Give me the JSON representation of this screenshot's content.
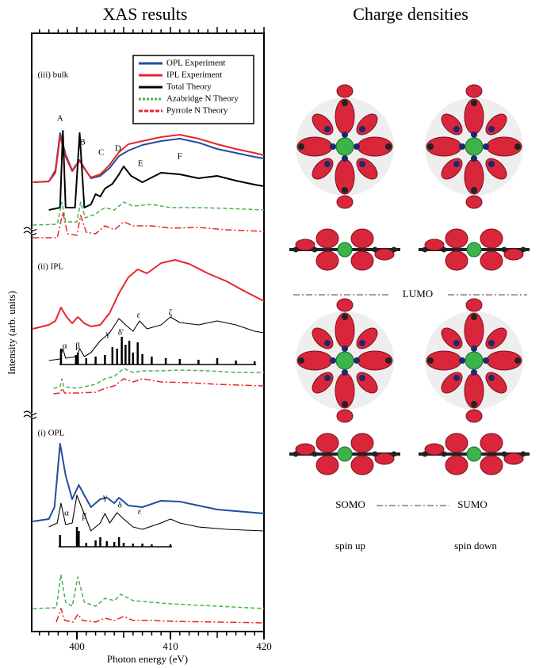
{
  "chart_data": {
    "type": "line",
    "title": "XAS results",
    "xlabel": "Photon energy (eV)",
    "ylabel": "Intensity (arb. units)",
    "xlim": [
      395,
      420
    ],
    "xticks": [
      400,
      410,
      420
    ],
    "minor_tick_step": 1,
    "ylim": [
      0,
      755
    ],
    "legend": "upper right",
    "series": [
      {
        "name": "OPL Experiment",
        "color": "#1f4e9c",
        "dash": "solid",
        "x": [
          395.3,
          397,
          397.7,
          398.2,
          398.8,
          399.5,
          400.3,
          400.8,
          401.5,
          402.5,
          403.5,
          404.5,
          405.5,
          407,
          409,
          411,
          413,
          415,
          417,
          419,
          420
        ],
        "values": [
          567,
          568,
          582,
          629,
          602,
          582,
          595,
          585,
          572,
          575,
          585,
          600,
          607,
          614,
          619,
          622,
          617,
          609,
          604,
          599,
          597
        ]
      },
      {
        "name": "IPL Experiment",
        "color": "#e8262a",
        "dash": "solid",
        "x": [
          395.3,
          397,
          397.7,
          398.2,
          398.8,
          399.5,
          400.3,
          400.8,
          401.5,
          402.5,
          403.5,
          404.5,
          405.5,
          407,
          409,
          411,
          413,
          415,
          417,
          419,
          420
        ],
        "values": [
          567,
          568,
          579,
          625,
          599,
          581,
          594,
          584,
          573,
          577,
          589,
          605,
          615,
          619,
          624,
          627,
          622,
          615,
          609,
          604,
          601
        ]
      },
      {
        "name": "Total Theory",
        "color": "#000000",
        "dash": "solid",
        "x": [
          397,
          398.2,
          398.5,
          398.8,
          399.8,
          400.3,
          400.8,
          401.5,
          402,
          402.5,
          403,
          403.8,
          404.5,
          405,
          405.8,
          407,
          409,
          411,
          413,
          415,
          417,
          419,
          420
        ],
        "values": [
          532,
          535,
          632,
          535,
          535,
          629,
          535,
          539,
          552,
          549,
          559,
          565,
          577,
          587,
          575,
          567,
          579,
          577,
          572,
          575,
          569,
          564,
          562
        ]
      },
      {
        "name": "Azabridge N Theory",
        "color": "#4caf50",
        "dash": "dashed",
        "x": [
          395.3,
          397.9,
          398.4,
          398.8,
          400,
          400.4,
          400.9,
          402,
          403,
          404,
          405,
          406,
          408,
          410,
          413,
          416,
          420
        ],
        "values": [
          513,
          514,
          542,
          517,
          517,
          542,
          522,
          527,
          535,
          532,
          542,
          537,
          539,
          535,
          535,
          534,
          532
        ]
      },
      {
        "name": "Pyrrole N Theory",
        "color": "#e8262a",
        "dash": "dashdot",
        "x": [
          395.3,
          397.9,
          398.5,
          399,
          400,
          400.4,
          401,
          402,
          403,
          404,
          405,
          406,
          408,
          410,
          413,
          416,
          420
        ],
        "values": [
          497,
          497,
          529,
          502,
          500,
          525,
          504,
          502,
          512,
          507,
          517,
          512,
          512,
          509,
          510,
          507,
          505
        ]
      },
      {
        "name": "IPL Experiment",
        "color": "#e8262a",
        "dash": "solid",
        "x": [
          395.3,
          397,
          397.7,
          398.3,
          398.9,
          399.5,
          400.1,
          400.8,
          401.5,
          402.5,
          403.5,
          404.5,
          405.5,
          406.5,
          407.5,
          409,
          410.5,
          412,
          414,
          416,
          418,
          420
        ],
        "values": [
          382,
          387,
          392,
          409,
          397,
          389,
          397,
          389,
          385,
          387,
          402,
          427,
          447,
          457,
          452,
          465,
          469,
          464,
          452,
          442,
          429,
          417
        ]
      },
      {
        "name": "Total Theory",
        "color": "#000000",
        "dash": "thin",
        "x": [
          397,
          398.2,
          398.5,
          398.8,
          400,
          400.3,
          400.8,
          401.5,
          402.5,
          403.5,
          404.5,
          405.2,
          406,
          406.7,
          407.5,
          409,
          410,
          411,
          413,
          415,
          417,
          419,
          420
        ],
        "values": [
          342,
          344,
          357,
          345,
          347,
          357,
          347,
          352,
          367,
          377,
          395,
          387,
          379,
          392,
          382,
          387,
          397,
          390,
          387,
          392,
          387,
          379,
          377
        ]
      },
      {
        "mark": "sticks",
        "color": "#000000",
        "baseline": 337,
        "x": [
          398.3,
          399.9,
          400.1,
          401,
          402,
          403,
          403.8,
          404.3,
          404.8,
          405.2,
          405.6,
          406,
          406.5,
          407,
          408,
          409.5,
          411,
          413,
          415,
          417,
          419
        ],
        "values": [
          357,
          349,
          352,
          345,
          347,
          349,
          359,
          357,
          372,
          362,
          367,
          352,
          365,
          350,
          347,
          345,
          344,
          343,
          345,
          342,
          341
        ]
      },
      {
        "name": "Azabridge N Theory",
        "color": "#4caf50",
        "dash": "dashed",
        "x": [
          397.5,
          398.2,
          398.4,
          398.6,
          400,
          402,
          403,
          404,
          405,
          406,
          407,
          409,
          411,
          414,
          417,
          420
        ],
        "values": [
          307,
          309,
          319,
          309,
          307,
          312,
          319,
          322,
          332,
          327,
          329,
          329,
          330,
          329,
          327,
          327
        ]
      },
      {
        "name": "Pyrrole N Theory",
        "color": "#e8262a",
        "dash": "dashdot",
        "x": [
          397.5,
          398.2,
          398.4,
          398.7,
          400,
          402,
          403,
          404,
          405,
          406,
          407,
          409,
          412,
          415,
          420
        ],
        "values": [
          300,
          301,
          307,
          301,
          301,
          302,
          307,
          310,
          319,
          315,
          319,
          315,
          314,
          312,
          310
        ]
      },
      {
        "name": "OPL Experiment",
        "color": "#1f4e9c",
        "dash": "solid",
        "x": [
          395.3,
          397,
          397.6,
          398.2,
          398.8,
          399.5,
          400.2,
          400.8,
          401.5,
          402.5,
          403.2,
          404,
          404.5,
          405.5,
          407,
          409,
          411,
          413,
          415,
          417,
          420
        ],
        "values": [
          139,
          142,
          157,
          237,
          197,
          167,
          185,
          172,
          157,
          167,
          169,
          162,
          169,
          159,
          157,
          165,
          164,
          159,
          154,
          152,
          149
        ]
      },
      {
        "name": "Total Theory",
        "color": "#000000",
        "dash": "thin",
        "x": [
          397,
          397.9,
          398.3,
          398.8,
          399.5,
          400,
          400.5,
          401.5,
          402.5,
          403,
          403.5,
          404.3,
          405,
          406,
          407,
          408,
          409,
          410,
          411,
          413,
          416,
          420
        ],
        "values": [
          132,
          137,
          162,
          135,
          137,
          172,
          157,
          127,
          137,
          149,
          137,
          150,
          142,
          132,
          129,
          133,
          137,
          142,
          137,
          132,
          129,
          127
        ]
      },
      {
        "mark": "sticks",
        "color": "#000000",
        "baseline": 107,
        "x": [
          398.2,
          400,
          400.2,
          401,
          402,
          402.5,
          403.2,
          404,
          404.5,
          405,
          406,
          407,
          408,
          410
        ],
        "values": [
          122,
          132,
          127,
          112,
          115,
          119,
          114,
          113,
          119,
          112,
          111,
          111,
          110,
          110
        ]
      },
      {
        "name": "Azabridge N Theory",
        "color": "#4caf50",
        "dash": "dashed",
        "x": [
          395.3,
          397.8,
          398.3,
          398.8,
          399.5,
          400.1,
          400.8,
          402,
          403,
          404,
          404.7,
          406,
          408,
          410,
          415,
          420
        ],
        "values": [
          29,
          30,
          72,
          37,
          32,
          69,
          37,
          32,
          42,
          39,
          47,
          39,
          37,
          35,
          32,
          29
        ]
      },
      {
        "name": "Pyrrole N Theory",
        "color": "#e8262a",
        "dash": "dashdot",
        "x": [
          397.8,
          398.3,
          398.7,
          399.6,
          400.1,
          400.6,
          402,
          403,
          404,
          405,
          406,
          408,
          410,
          415,
          420
        ],
        "values": [
          12,
          29,
          14,
          12,
          22,
          14,
          12,
          17,
          14,
          19,
          14,
          14,
          13,
          12,
          11
        ]
      }
    ],
    "annotations": [
      {
        "text": "(iii) bulk",
        "x": 395.8,
        "y": 702
      },
      {
        "text": "(ii) IPL",
        "x": 395.8,
        "y": 460
      },
      {
        "text": "(i) OPL",
        "x": 395.8,
        "y": 250
      },
      {
        "text": "A",
        "x": 398.2,
        "y": 647
      },
      {
        "text": "B",
        "x": 400.6,
        "y": 617
      },
      {
        "text": "C",
        "x": 402.6,
        "y": 604
      },
      {
        "text": "D",
        "x": 404.4,
        "y": 609
      },
      {
        "text": "E",
        "x": 406.8,
        "y": 590
      },
      {
        "text": "F",
        "x": 411,
        "y": 599
      },
      {
        "text": "α",
        "x": 398.7,
        "y": 360
      },
      {
        "text": "β",
        "x": 400.1,
        "y": 360
      },
      {
        "text": "γ",
        "x": 403.3,
        "y": 375
      },
      {
        "text": "δ'",
        "x": 404.7,
        "y": 377
      },
      {
        "text": "ε",
        "x": 406.6,
        "y": 399
      },
      {
        "text": "ζ",
        "x": 410,
        "y": 402
      },
      {
        "text": "α",
        "x": 398.9,
        "y": 149
      },
      {
        "text": "β",
        "x": 400.8,
        "y": 145
      },
      {
        "text": "γ",
        "x": 403,
        "y": 169
      },
      {
        "text": "δ",
        "x": 404.6,
        "y": 159
      },
      {
        "text": "ε",
        "x": 406.7,
        "y": 151
      }
    ]
  },
  "charge_densities": {
    "title": "Charge densities",
    "lumo": "LUMO",
    "somo": "SOMO",
    "sumo": "SUMO",
    "spin_up": "spin up",
    "spin_down": "spin down"
  }
}
